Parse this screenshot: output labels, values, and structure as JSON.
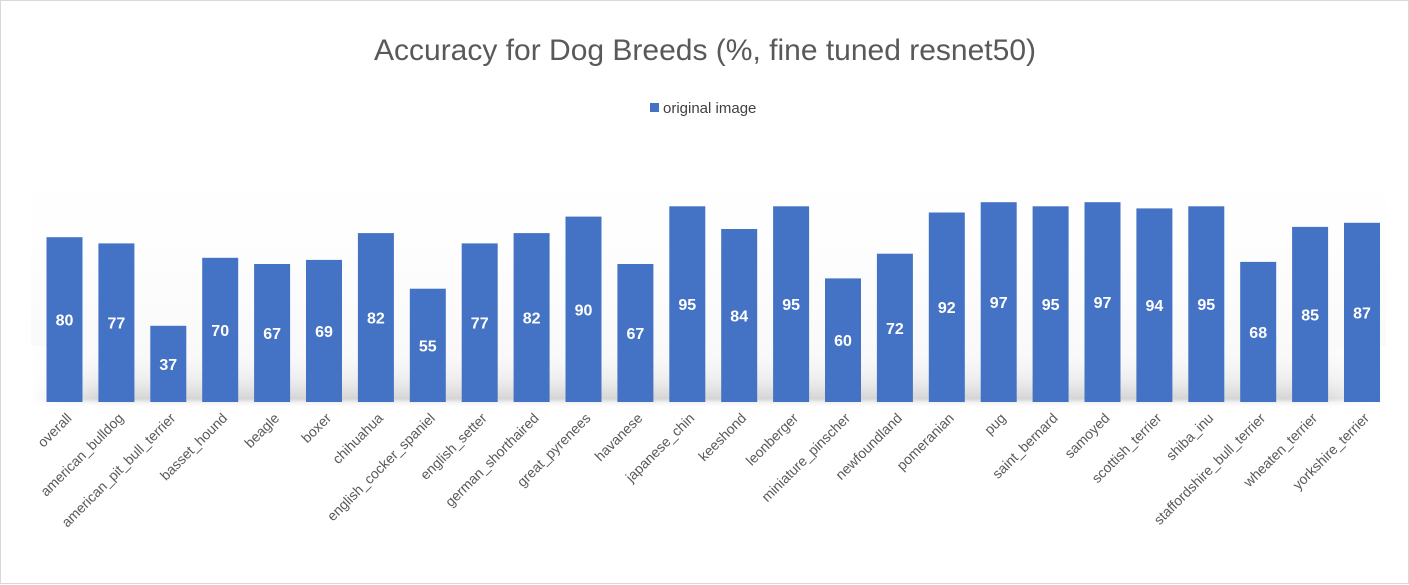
{
  "chart_data": {
    "type": "bar",
    "title": "Accuracy for Dog Breeds (%, fine tuned resnet50)",
    "xlabel": "",
    "ylabel": "",
    "ylim": [
      0,
      100
    ],
    "grid": false,
    "legend_position": "top-center",
    "bar_color": "#4472c4",
    "categories": [
      "overall",
      "american_bulldog",
      "american_pit_bull_terrier",
      "basset_hound",
      "beagle",
      "boxer",
      "chihuahua",
      "english_cocker_spaniel",
      "english_setter",
      "german_shorthaired",
      "great_pyrenees",
      "havanese",
      "japanese_chin",
      "keeshond",
      "leonberger",
      "miniature_pinscher",
      "newfoundland",
      "pomeranian",
      "pug",
      "saint_bernard",
      "samoyed",
      "scottish_terrier",
      "shiba_inu",
      "staffordshire_bull_terrier",
      "wheaten_terrier",
      "yorkshire_terrier"
    ],
    "series": [
      {
        "name": "original image",
        "values": [
          80,
          77,
          37,
          70,
          67,
          69,
          82,
          55,
          77,
          82,
          90,
          67,
          95,
          84,
          95,
          60,
          72,
          92,
          97,
          95,
          97,
          94,
          95,
          68,
          85,
          87
        ]
      }
    ]
  }
}
